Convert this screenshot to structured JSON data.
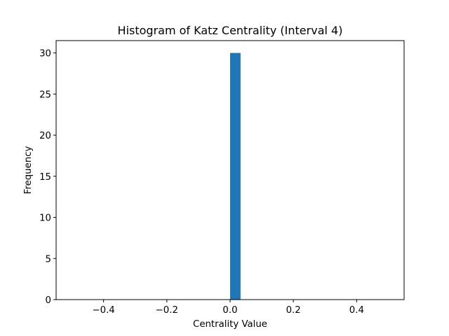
{
  "chart_data": {
    "type": "bar",
    "title": "Histogram of Katz Centrality (Interval 4)",
    "xlabel": "Centrality Value",
    "ylabel": "Frequency",
    "xlim": [
      -0.55,
      0.55
    ],
    "ylim": [
      0,
      31.5
    ],
    "xticks": [
      -0.4,
      -0.2,
      0.0,
      0.2,
      0.4
    ],
    "xtick_labels": [
      "−0.4",
      "−0.2",
      "0.0",
      "0.2",
      "0.4"
    ],
    "yticks": [
      0,
      5,
      10,
      15,
      20,
      25,
      30
    ],
    "ytick_labels": [
      "0",
      "5",
      "10",
      "15",
      "20",
      "25",
      "30"
    ],
    "bins": [
      {
        "x0": 0.0,
        "x1": 0.033,
        "value": 30
      }
    ],
    "bar_color": "#1f77b4",
    "grid": false,
    "legend": "none"
  }
}
